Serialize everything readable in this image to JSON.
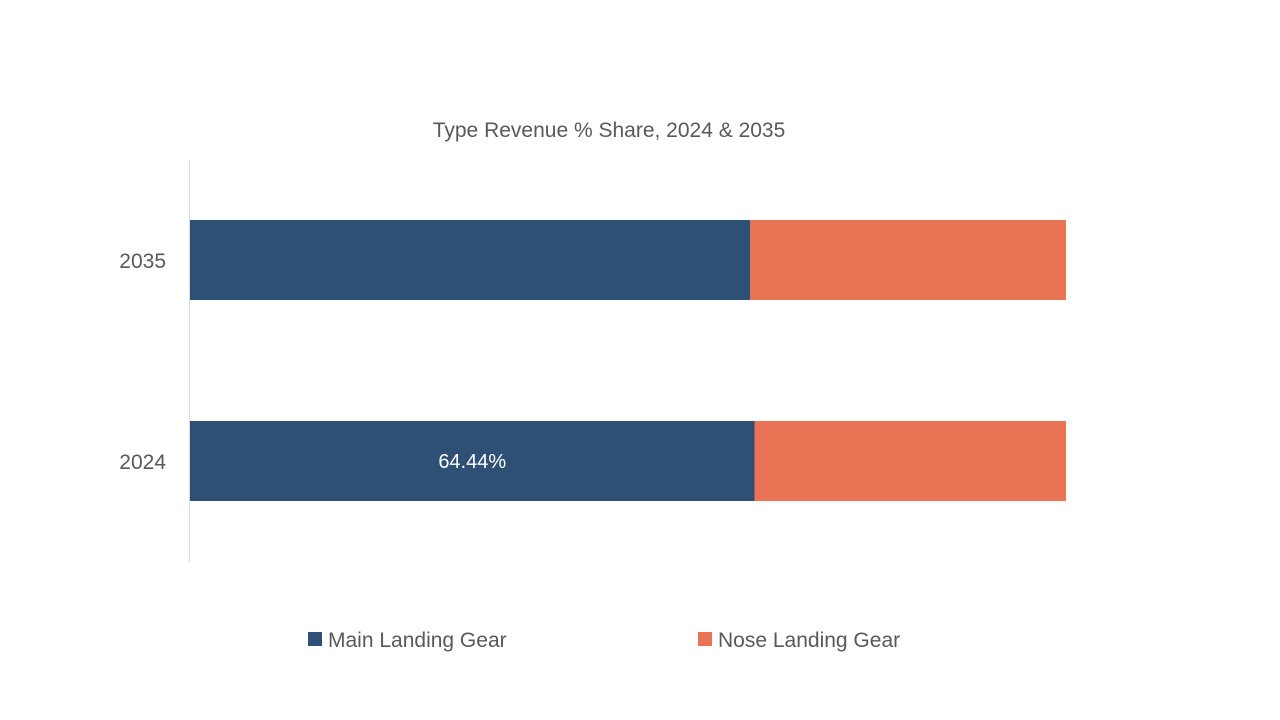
{
  "chart_data": {
    "type": "bar",
    "orientation": "horizontal",
    "stacked": true,
    "normalized_percent": true,
    "title": "Type Revenue % Share, 2024 & 2035",
    "categories": [
      "2035",
      "2024"
    ],
    "series": [
      {
        "name": "Main Landing Gear",
        "color": "#2e5075",
        "values": [
          63.96,
          64.44
        ],
        "data_labels": [
          "",
          "64.44%"
        ]
      },
      {
        "name": "Nose Landing Gear",
        "color": "#e97455",
        "values": [
          36.04,
          35.56
        ],
        "data_labels": [
          "",
          ""
        ]
      }
    ],
    "xlim": [
      0,
      100
    ],
    "xlabel": "",
    "ylabel": "",
    "grid": false,
    "legend_position": "bottom"
  }
}
